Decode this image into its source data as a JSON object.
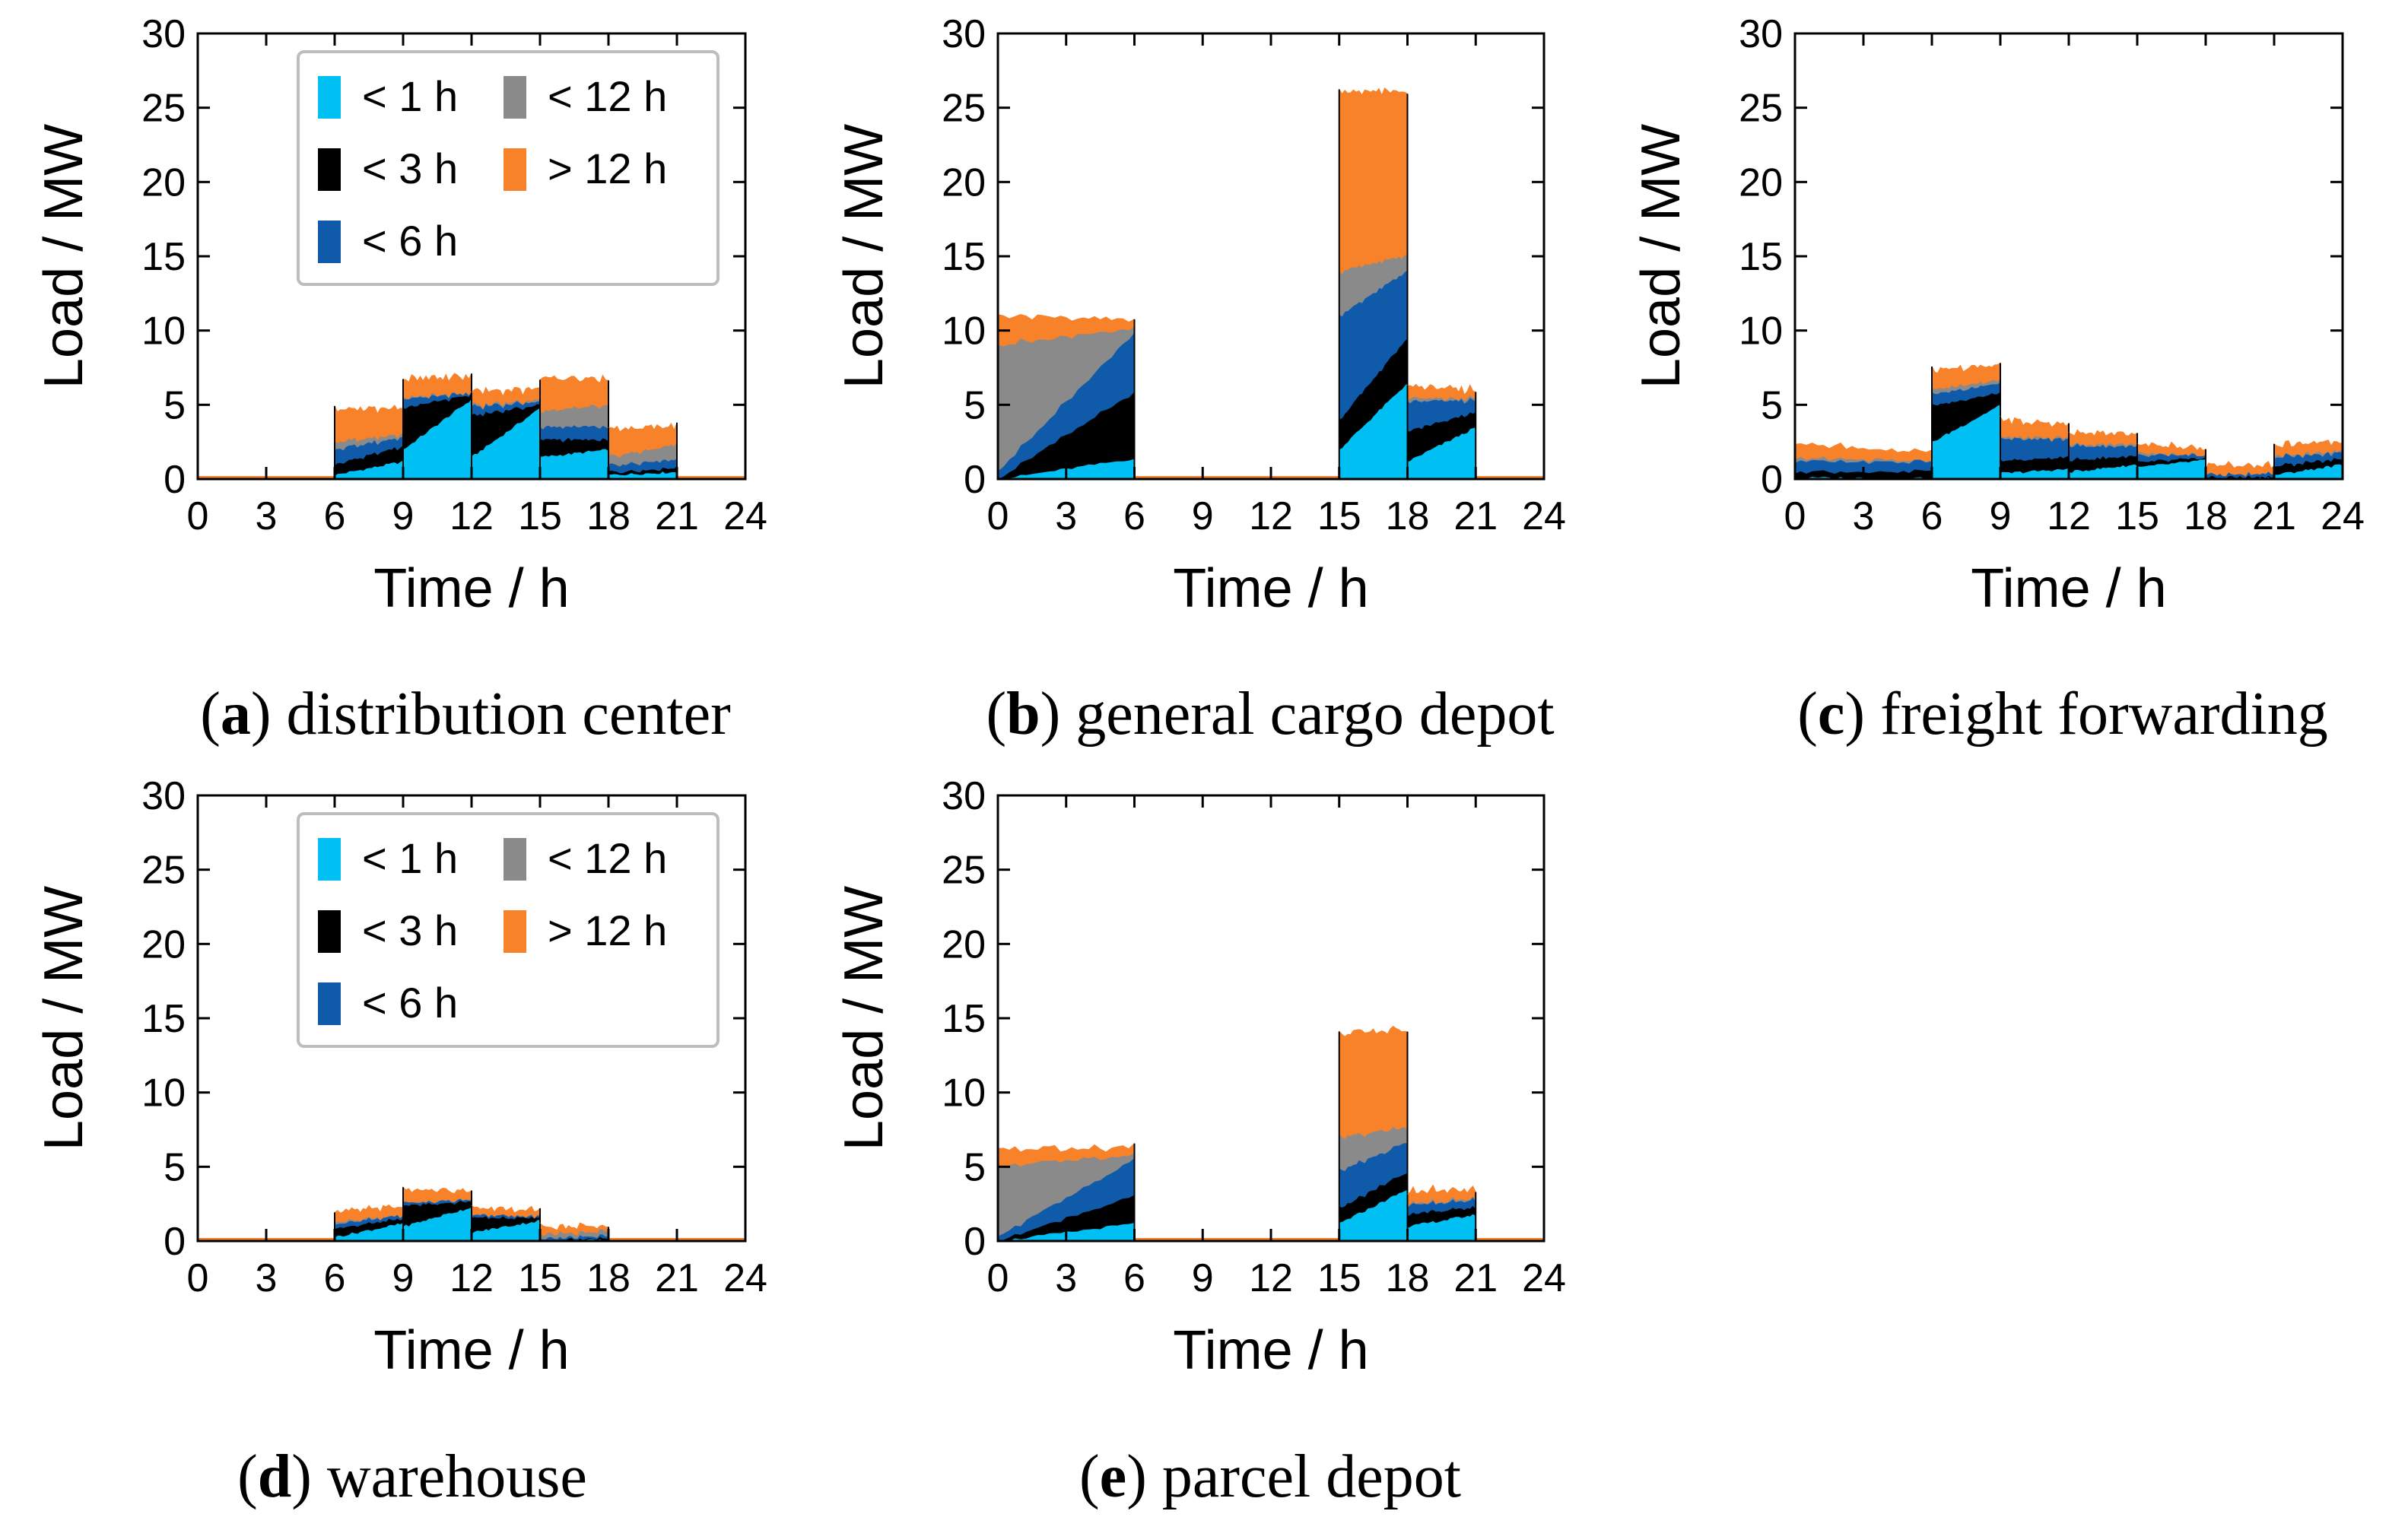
{
  "figure": {
    "colors": {
      "lt1h": "#00BFF3",
      "lt3h": "#000000",
      "lt6h": "#0F5BAA",
      "lt12h": "#8A8A8A",
      "gt12h": "#F7822A"
    },
    "legend": {
      "entries": [
        {
          "key": "lt1h",
          "label": "< 1 h"
        },
        {
          "key": "lt12h",
          "label": "< 12 h"
        },
        {
          "key": "lt3h",
          "label": "< 3 h"
        },
        {
          "key": "gt12h",
          "label": "> 12 h"
        },
        {
          "key": "lt6h",
          "label": "< 6 h"
        }
      ]
    }
  },
  "chart_data": [
    {
      "type": "area",
      "id": "a",
      "caption_letter": "a",
      "caption_text": "distribution center",
      "xlabel": "Time / h",
      "ylabel": "Load / MW",
      "xlim": [
        0,
        24
      ],
      "ylim": [
        0,
        30
      ],
      "xticks": [
        "0",
        "3",
        "6",
        "9",
        "12",
        "15",
        "18",
        "21",
        "24"
      ],
      "yticks": [
        "0",
        "5",
        "10",
        "15",
        "20",
        "25",
        "30"
      ],
      "show_legend": true,
      "series_order": [
        "lt1h",
        "lt3h",
        "lt6h",
        "lt12h",
        "gt12h"
      ],
      "segments": [
        {
          "start": 6,
          "end": 9,
          "lt1h": [
            0.3,
            1.2
          ],
          "lt3h": [
            0.7,
            1.0
          ],
          "lt6h": [
            1.0,
            0.6
          ],
          "lt12h": [
            0.5,
            0.2
          ],
          "gt12h": [
            2.2,
            1.7
          ]
        },
        {
          "start": 9,
          "end": 12,
          "lt1h": [
            2.0,
            5.4
          ],
          "lt3h": [
            2.8,
            0.3
          ],
          "lt6h": [
            0.6,
            0.1
          ],
          "lt12h": [
            0.1,
            0.0
          ],
          "gt12h": [
            1.2,
            1.1
          ]
        },
        {
          "start": 12,
          "end": 15,
          "lt1h": [
            1.5,
            4.8
          ],
          "lt3h": [
            2.8,
            0.2
          ],
          "lt6h": [
            0.6,
            0.2
          ],
          "lt12h": [
            0.1,
            0.1
          ],
          "gt12h": [
            0.9,
            0.7
          ]
        },
        {
          "start": 15,
          "end": 18,
          "lt1h": [
            1.5,
            2.0
          ],
          "lt3h": [
            1.2,
            0.6
          ],
          "lt6h": [
            0.8,
            0.9
          ],
          "lt12h": [
            1.0,
            1.5
          ],
          "gt12h": [
            2.2,
            1.8
          ]
        },
        {
          "start": 18,
          "end": 21,
          "lt1h": [
            0.3,
            0.5
          ],
          "lt3h": [
            0.2,
            0.3
          ],
          "lt6h": [
            0.5,
            0.6
          ],
          "lt12h": [
            0.6,
            1.0
          ],
          "gt12h": [
            1.9,
            1.2
          ]
        }
      ]
    },
    {
      "type": "area",
      "id": "b",
      "caption_letter": "b",
      "caption_text": "general cargo depot",
      "xlabel": "Time / h",
      "ylabel": "Load / MW",
      "xlim": [
        0,
        24
      ],
      "ylim": [
        0,
        30
      ],
      "xticks": [
        "0",
        "3",
        "6",
        "9",
        "12",
        "15",
        "18",
        "21",
        "24"
      ],
      "yticks": [
        "0",
        "5",
        "10",
        "15",
        "20",
        "25",
        "30"
      ],
      "show_legend": false,
      "series_order": [
        "lt1h",
        "lt3h",
        "lt6h",
        "lt12h",
        "gt12h"
      ],
      "segments": [
        {
          "start": 0,
          "end": 6,
          "lt1h": [
            0.0,
            1.4
          ],
          "lt3h": [
            0.0,
            4.5
          ],
          "lt6h": [
            0.5,
            4.0
          ],
          "lt12h": [
            8.5,
            0.3
          ],
          "gt12h": [
            2.0,
            0.5
          ]
        },
        {
          "start": 15,
          "end": 18,
          "lt1h": [
            2.0,
            6.5
          ],
          "lt3h": [
            2.0,
            3.0
          ],
          "lt6h": [
            7.0,
            4.5
          ],
          "lt12h": [
            3.0,
            1.0
          ],
          "gt12h": [
            12.0,
            11.0
          ]
        },
        {
          "start": 18,
          "end": 21,
          "lt1h": [
            1.2,
            3.5
          ],
          "lt3h": [
            2.0,
            1.0
          ],
          "lt6h": [
            2.0,
            0.8
          ],
          "lt12h": [
            0.2,
            0.1
          ],
          "gt12h": [
            0.8,
            0.5
          ]
        }
      ]
    },
    {
      "type": "area",
      "id": "c",
      "caption_letter": "c",
      "caption_text": "freight forwarding",
      "xlabel": "Time / h",
      "ylabel": "Load / MW",
      "xlim": [
        0,
        24
      ],
      "ylim": [
        0,
        30
      ],
      "xticks": [
        "0",
        "3",
        "6",
        "9",
        "12",
        "15",
        "18",
        "21",
        "24"
      ],
      "yticks": [
        "0",
        "5",
        "10",
        "15",
        "20",
        "25",
        "30"
      ],
      "show_legend": false,
      "series_order": [
        "lt1h",
        "lt3h",
        "lt6h",
        "lt12h",
        "gt12h"
      ],
      "segments": [
        {
          "start": 0,
          "end": 6,
          "lt1h": [
            0.1,
            0.1
          ],
          "lt3h": [
            0.4,
            0.5
          ],
          "lt6h": [
            0.8,
            0.6
          ],
          "lt12h": [
            0.2,
            0.1
          ],
          "gt12h": [
            0.9,
            0.6
          ]
        },
        {
          "start": 6,
          "end": 9,
          "lt1h": [
            2.5,
            5.0
          ],
          "lt3h": [
            2.5,
            0.8
          ],
          "lt6h": [
            0.8,
            0.6
          ],
          "lt12h": [
            0.3,
            0.2
          ],
          "gt12h": [
            1.2,
            1.0
          ]
        },
        {
          "start": 9,
          "end": 12,
          "lt1h": [
            0.4,
            0.7
          ],
          "lt3h": [
            0.8,
            0.8
          ],
          "lt6h": [
            1.5,
            1.2
          ],
          "lt12h": [
            0.1,
            0.1
          ],
          "gt12h": [
            1.1,
            0.9
          ]
        },
        {
          "start": 12,
          "end": 15,
          "lt1h": [
            0.5,
            1.0
          ],
          "lt3h": [
            0.8,
            0.6
          ],
          "lt6h": [
            1.0,
            0.6
          ],
          "lt12h": [
            0.1,
            0.1
          ],
          "gt12h": [
            0.7,
            0.6
          ]
        },
        {
          "start": 15,
          "end": 18,
          "lt1h": [
            0.8,
            1.3
          ],
          "lt3h": [
            0.3,
            0.1
          ],
          "lt6h": [
            0.4,
            0.2
          ],
          "lt12h": [
            0.1,
            0.0
          ],
          "gt12h": [
            0.6,
            0.4
          ]
        },
        {
          "start": 18,
          "end": 21,
          "lt1h": [
            0.0,
            0.1
          ],
          "lt3h": [
            0.1,
            0.1
          ],
          "lt6h": [
            0.2,
            0.2
          ],
          "lt12h": [
            0.0,
            0.0
          ],
          "gt12h": [
            0.6,
            0.5
          ]
        },
        {
          "start": 21,
          "end": 24,
          "lt1h": [
            0.3,
            1.0
          ],
          "lt3h": [
            0.6,
            0.4
          ],
          "lt6h": [
            0.6,
            0.4
          ],
          "lt12h": [
            0.1,
            0.1
          ],
          "gt12h": [
            0.7,
            0.6
          ]
        }
      ]
    },
    {
      "type": "area",
      "id": "d",
      "caption_letter": "d",
      "caption_text": "warehouse",
      "xlabel": "Time / h",
      "ylabel": "Load / MW",
      "xlim": [
        0,
        24
      ],
      "ylim": [
        0,
        30
      ],
      "xticks": [
        "0",
        "3",
        "6",
        "9",
        "12",
        "15",
        "18",
        "21",
        "24"
      ],
      "yticks": [
        "0",
        "5",
        "10",
        "15",
        "20",
        "25",
        "30"
      ],
      "show_legend": true,
      "series_order": [
        "lt1h",
        "lt3h",
        "lt6h",
        "lt12h",
        "gt12h"
      ],
      "segments": [
        {
          "start": 6,
          "end": 9,
          "lt1h": [
            0.3,
            1.2
          ],
          "lt3h": [
            0.6,
            0.3
          ],
          "lt6h": [
            0.3,
            0.2
          ],
          "lt12h": [
            0.1,
            0.0
          ],
          "gt12h": [
            0.7,
            0.6
          ]
        },
        {
          "start": 9,
          "end": 12,
          "lt1h": [
            1.0,
            2.3
          ],
          "lt3h": [
            1.4,
            0.4
          ],
          "lt6h": [
            0.2,
            0.1
          ],
          "lt12h": [
            0.0,
            0.0
          ],
          "gt12h": [
            0.8,
            0.6
          ]
        },
        {
          "start": 12,
          "end": 15,
          "lt1h": [
            0.6,
            1.4
          ],
          "lt3h": [
            1.0,
            0.2
          ],
          "lt6h": [
            0.2,
            0.1
          ],
          "lt12h": [
            0.0,
            0.0
          ],
          "gt12h": [
            0.5,
            0.3
          ]
        },
        {
          "start": 15,
          "end": 18,
          "lt1h": [
            0.0,
            0.1
          ],
          "lt3h": [
            0.0,
            0.1
          ],
          "lt6h": [
            0.1,
            0.2
          ],
          "lt12h": [
            0.3,
            0.3
          ],
          "gt12h": [
            0.5,
            0.3
          ]
        }
      ]
    },
    {
      "type": "area",
      "id": "e",
      "caption_letter": "e",
      "caption_text": "parcel depot",
      "xlabel": "Time / h",
      "ylabel": "Load / MW",
      "xlim": [
        0,
        24
      ],
      "ylim": [
        0,
        30
      ],
      "xticks": [
        "0",
        "3",
        "6",
        "9",
        "12",
        "15",
        "18",
        "21",
        "24"
      ],
      "yticks": [
        "0",
        "5",
        "10",
        "15",
        "20",
        "25",
        "30"
      ],
      "show_legend": false,
      "series_order": [
        "lt1h",
        "lt3h",
        "lt6h",
        "lt12h",
        "gt12h"
      ],
      "segments": [
        {
          "start": 0,
          "end": 6,
          "lt1h": [
            0.0,
            1.2
          ],
          "lt3h": [
            0.0,
            1.8
          ],
          "lt6h": [
            0.3,
            2.4
          ],
          "lt12h": [
            4.7,
            0.3
          ],
          "gt12h": [
            1.0,
            0.5
          ]
        },
        {
          "start": 15,
          "end": 18,
          "lt1h": [
            1.2,
            3.5
          ],
          "lt3h": [
            1.0,
            1.2
          ],
          "lt6h": [
            2.5,
            2.0
          ],
          "lt12h": [
            2.3,
            1.0
          ],
          "gt12h": [
            7.0,
            6.5
          ]
        },
        {
          "start": 18,
          "end": 21,
          "lt1h": [
            1.0,
            1.8
          ],
          "lt3h": [
            0.8,
            0.5
          ],
          "lt6h": [
            0.6,
            0.5
          ],
          "lt12h": [
            0.1,
            0.1
          ],
          "gt12h": [
            0.8,
            0.6
          ]
        }
      ]
    }
  ]
}
